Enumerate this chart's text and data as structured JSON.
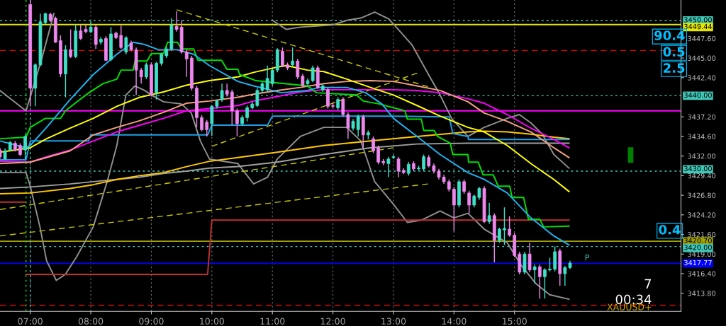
{
  "chart_data": {
    "type": "candlestick",
    "x": [
      6.5,
      6.583,
      6.667,
      6.75,
      6.833,
      6.917,
      7,
      7.083,
      7.167,
      7.25,
      7.333,
      7.417,
      7.5,
      7.583,
      7.667,
      7.75,
      7.833,
      7.917,
      8,
      8.083,
      8.167,
      8.25,
      8.333,
      8.417,
      8.5,
      8.583,
      8.667,
      8.75,
      8.833,
      8.917,
      9,
      9.083,
      9.167,
      9.25,
      9.333,
      9.417,
      9.5,
      9.583,
      9.667,
      9.75,
      9.833,
      9.917,
      10,
      10.083,
      10.167,
      10.25,
      10.333,
      10.417,
      10.5,
      10.583,
      10.667,
      10.75,
      10.833,
      10.917,
      11,
      11.083,
      11.167,
      11.25,
      11.333,
      11.417,
      11.5,
      11.583,
      11.667,
      11.75,
      11.833,
      11.917,
      12,
      12.083,
      12.167,
      12.25,
      12.333,
      12.417,
      12.5,
      12.583,
      12.667,
      12.75,
      12.833,
      12.917,
      13,
      13.083,
      13.167,
      13.25,
      13.333,
      13.417,
      13.5,
      13.583,
      13.667,
      13.75,
      13.833,
      13.917,
      14,
      14.083,
      14.167,
      14.25,
      14.333,
      14.417,
      14.5,
      14.583,
      14.667,
      14.75,
      14.833,
      14.917,
      15,
      15.083,
      15.167,
      15.25,
      15.333,
      15.417,
      15.5,
      15.583,
      15.667,
      15.75,
      15.833,
      15.917
    ],
    "ohlc": [
      [
        3432.8,
        3433.1,
        3431.6,
        3431.9
      ],
      [
        3431.6,
        3433.0,
        3431.5,
        3432.7
      ],
      [
        3432.8,
        3434.0,
        3432.7,
        3433.8
      ],
      [
        3433.7,
        3434.0,
        3432.6,
        3432.8
      ],
      [
        3433.4,
        3433.7,
        3432.0,
        3432.2
      ],
      [
        3432.8,
        3434.9,
        3431.6,
        3434.6
      ],
      [
        3452.1,
        3452.7,
        3438.6,
        3441.0
      ],
      [
        3441.0,
        3444.3,
        3438.6,
        3444.1
      ],
      [
        3444.1,
        3450.9,
        3443.9,
        3449.8
      ],
      [
        3449.7,
        3451.0,
        3449.5,
        3450.9
      ],
      [
        3450.8,
        3451.0,
        3449.8,
        3450.0
      ],
      [
        3450.3,
        3450.5,
        3447.0,
        3447.1
      ],
      [
        3447.3,
        3448.0,
        3442.5,
        3442.9
      ],
      [
        3442.9,
        3446.7,
        3439.8,
        3446.1
      ],
      [
        3446.1,
        3448.8,
        3445.0,
        3445.2
      ],
      [
        3445.2,
        3449.4,
        3445.0,
        3448.6
      ],
      [
        3448.6,
        3449.4,
        3447.4,
        3447.6
      ],
      [
        3448.8,
        3449.4,
        3448.3,
        3448.5
      ],
      [
        3448.5,
        3449.9,
        3448.3,
        3449.1
      ],
      [
        3449.1,
        3449.4,
        3446.2,
        3446.8
      ],
      [
        3447.1,
        3447.8,
        3446.8,
        3447.5
      ],
      [
        3447.6,
        3447.9,
        3444.6,
        3444.7
      ],
      [
        3444.8,
        3449.1,
        3444.6,
        3448.2
      ],
      [
        3448.3,
        3448.5,
        3447.5,
        3447.7
      ],
      [
        3448.0,
        3449.3,
        3446.2,
        3446.4
      ],
      [
        3445.8,
        3447.9,
        3445.5,
        3447.7
      ],
      [
        3447.0,
        3447.3,
        3445.9,
        3446.1
      ],
      [
        3446.1,
        3446.4,
        3440.1,
        3443.4
      ],
      [
        3443.4,
        3443.7,
        3441.6,
        3442.5
      ],
      [
        3442.5,
        3444.4,
        3442.2,
        3444.1
      ],
      [
        3444.1,
        3444.4,
        3439.9,
        3440.1
      ],
      [
        3440.4,
        3444.5,
        3439.5,
        3444.3
      ],
      [
        3444.3,
        3445.7,
        3444.0,
        3445.5
      ],
      [
        3445.3,
        3446.5,
        3445.0,
        3446.2
      ],
      [
        3446.2,
        3450.3,
        3446.0,
        3449.4
      ],
      [
        3449.2,
        3451.2,
        3448.5,
        3448.8
      ],
      [
        3449.1,
        3450.0,
        3445.6,
        3445.8
      ],
      [
        3445.8,
        3446.1,
        3442.5,
        3444.9
      ],
      [
        3445.0,
        3445.3,
        3440.7,
        3441.0
      ],
      [
        3441.0,
        3441.3,
        3435.8,
        3437.1
      ],
      [
        3437.1,
        3437.4,
        3435.3,
        3435.5
      ],
      [
        3436.5,
        3436.8,
        3434.6,
        3435.5
      ],
      [
        3436.3,
        3438.8,
        3434.7,
        3438.6
      ],
      [
        3438.6,
        3439.5,
        3438.3,
        3439.3
      ],
      [
        3439.5,
        3441.6,
        3439.2,
        3440.7
      ],
      [
        3440.7,
        3441.6,
        3439.9,
        3440.2
      ],
      [
        3440.5,
        3440.8,
        3436.1,
        3438.0
      ],
      [
        3438.0,
        3438.3,
        3434.6,
        3436.3
      ],
      [
        3436.3,
        3437.4,
        3436.0,
        3437.1
      ],
      [
        3437.1,
        3438.7,
        3436.6,
        3438.4
      ],
      [
        3438.4,
        3439.2,
        3438.2,
        3438.9
      ],
      [
        3438.7,
        3441.0,
        3438.5,
        3440.7
      ],
      [
        3440.7,
        3441.8,
        3440.4,
        3441.6
      ],
      [
        3440.8,
        3444.0,
        3440.5,
        3442.3
      ],
      [
        3441.6,
        3443.6,
        3441.3,
        3443.4
      ],
      [
        3443.4,
        3446.3,
        3443.1,
        3446.1
      ],
      [
        3445.9,
        3446.4,
        3443.8,
        3444.0
      ],
      [
        3444.1,
        3444.4,
        3443.4,
        3443.7
      ],
      [
        3444.1,
        3446.4,
        3443.9,
        3444.6
      ],
      [
        3444.6,
        3444.9,
        3442.2,
        3442.5
      ],
      [
        3442.6,
        3442.9,
        3441.2,
        3441.4
      ],
      [
        3441.6,
        3442.3,
        3441.3,
        3442.0
      ],
      [
        3442.0,
        3444.0,
        3441.8,
        3443.7
      ],
      [
        3443.7,
        3444.0,
        3440.9,
        3441.1
      ],
      [
        3440.8,
        3441.6,
        3440.5,
        3441.3
      ],
      [
        3440.8,
        3441.1,
        3438.3,
        3438.6
      ],
      [
        3438.7,
        3439.0,
        3438.3,
        3438.6
      ],
      [
        3438.4,
        3439.8,
        3438.1,
        3439.5
      ],
      [
        3439.5,
        3439.8,
        3437.2,
        3437.5
      ],
      [
        3437.5,
        3437.8,
        3434.3,
        3435.7
      ],
      [
        3435.7,
        3436.9,
        3435.4,
        3436.6
      ],
      [
        3435.5,
        3437.5,
        3434.6,
        3437.2
      ],
      [
        3437.2,
        3437.5,
        3433.1,
        3434.8
      ],
      [
        3434.8,
        3435.4,
        3434.2,
        3435.1
      ],
      [
        3434.3,
        3434.6,
        3432.4,
        3432.7
      ],
      [
        3433.1,
        3433.4,
        3430.9,
        3431.2
      ],
      [
        3431.3,
        3431.6,
        3430.8,
        3431.1
      ],
      [
        3431.0,
        3431.9,
        3429.2,
        3431.6
      ],
      [
        3431.8,
        3432.2,
        3431.6,
        3431.9
      ],
      [
        3431.6,
        3431.9,
        3429.2,
        3430.0
      ],
      [
        3430.1,
        3430.4,
        3429.6,
        3429.8
      ],
      [
        3429.7,
        3431.2,
        3429.4,
        3430.9
      ],
      [
        3431.0,
        3431.3,
        3430.0,
        3430.3
      ],
      [
        3430.3,
        3430.7,
        3430.1,
        3430.4
      ],
      [
        3430.3,
        3432.2,
        3430.0,
        3431.9
      ],
      [
        3431.8,
        3432.1,
        3430.5,
        3430.7
      ],
      [
        3430.7,
        3431.0,
        3429.7,
        3430.0
      ],
      [
        3430.0,
        3430.3,
        3428.9,
        3429.2
      ],
      [
        3429.2,
        3429.5,
        3428.3,
        3428.6
      ],
      [
        3428.6,
        3428.9,
        3427.3,
        3427.6
      ],
      [
        3427.6,
        3427.9,
        3422.0,
        3425.5
      ],
      [
        3425.5,
        3428.9,
        3425.2,
        3428.6
      ],
      [
        3428.6,
        3428.9,
        3427.0,
        3427.3
      ],
      [
        3427.1,
        3427.4,
        3424.4,
        3425.5
      ],
      [
        3425.5,
        3426.9,
        3425.2,
        3426.7
      ],
      [
        3426.5,
        3427.9,
        3426.2,
        3427.7
      ],
      [
        3427.7,
        3428.0,
        3423.1,
        3423.3
      ],
      [
        3423.3,
        3425.8,
        3423.0,
        3424.1
      ],
      [
        3424.1,
        3424.4,
        3417.9,
        3420.8
      ],
      [
        3420.8,
        3422.5,
        3420.5,
        3422.3
      ],
      [
        3422.2,
        3425.2,
        3420.2,
        3422.4
      ],
      [
        3422.3,
        3424.0,
        3421.3,
        3421.5
      ],
      [
        3421.5,
        3421.8,
        3418.6,
        3418.8
      ],
      [
        3419.0,
        3419.3,
        3416.3,
        3416.6
      ],
      [
        3416.6,
        3419.3,
        3416.3,
        3419.0
      ],
      [
        3419.0,
        3420.5,
        3416.6,
        3416.9
      ],
      [
        3416.9,
        3417.6,
        3415.1,
        3417.3
      ],
      [
        3417.3,
        3417.6,
        3413.1,
        3416.0
      ],
      [
        3416.0,
        3417.1,
        3413.1,
        3416.9
      ],
      [
        3416.9,
        3418.5,
        3416.7,
        3417.0
      ],
      [
        3417.0,
        3420.0,
        3416.7,
        3419.3
      ],
      [
        3419.4,
        3419.7,
        3414.8,
        3416.4
      ],
      [
        3416.4,
        3417.4,
        3414.8,
        3417.2
      ],
      [
        3417.2,
        3418.1,
        3417.0,
        3417.8
      ]
    ],
    "colors": [
      "#ee88ee",
      "#40e0c8",
      "#40e0c8",
      "#ee88ee",
      "#ee88ee",
      "#40e0c8",
      "#ee88ee",
      "#40e0c8",
      "#40e0c8",
      "#40e0c8",
      "#ee88ee",
      "#ee88ee",
      "#ee88ee",
      "#40e0c8",
      "#ee88ee",
      "#40e0c8",
      "#ee88ee",
      "#ee88ee",
      "#40e0c8",
      "#ee88ee",
      "#40e0c8",
      "#ee88ee",
      "#40e0c8",
      "#ee88ee",
      "#ee88ee",
      "#40e0c8",
      "#ee88ee",
      "#ee88ee",
      "#ee88ee",
      "#40e0c8",
      "#ee88ee",
      "#40e0c8",
      "#40e0c8",
      "#40e0c8",
      "#40e0c8",
      "#ee88ee",
      "#ee88ee",
      "#ee88ee",
      "#ee88ee",
      "#ee88ee",
      "#ee88ee",
      "#ee88ee",
      "#40e0c8",
      "#40e0c8",
      "#40e0c8",
      "#ee88ee",
      "#ee88ee",
      "#ee88ee",
      "#40e0c8",
      "#40e0c8",
      "#40e0c8",
      "#40e0c8",
      "#40e0c8",
      "#40e0c8",
      "#40e0c8",
      "#40e0c8",
      "#ee88ee",
      "#ee88ee",
      "#40e0c8",
      "#ee88ee",
      "#ee88ee",
      "#40e0c8",
      "#40e0c8",
      "#ee88ee",
      "#40e0c8",
      "#ee88ee",
      "#ee88ee",
      "#40e0c8",
      "#ee88ee",
      "#ee88ee",
      "#40e0c8",
      "#40e0c8",
      "#ee88ee",
      "#40e0c8",
      "#ee88ee",
      "#ee88ee",
      "#ee88ee",
      "#40e0c8",
      "#40e0c8",
      "#ee88ee",
      "#ee88ee",
      "#40e0c8",
      "#ee88ee",
      "#40e0c8",
      "#40e0c8",
      "#ee88ee",
      "#ee88ee",
      "#ee88ee",
      "#ee88ee",
      "#ee88ee",
      "#ee88ee",
      "#40e0c8",
      "#ee88ee",
      "#ee88ee",
      "#40e0c8",
      "#40e0c8",
      "#ee88ee",
      "#40e0c8",
      "#ee88ee",
      "#40e0c8",
      "#40e0c8",
      "#ee88ee",
      "#ee88ee",
      "#ee88ee",
      "#40e0c8",
      "#ee88ee",
      "#40e0c8",
      "#ee88ee",
      "#40e0c8",
      "#40e0c8",
      "#40e0c8",
      "#ee88ee",
      "#40e0c8",
      "#40e0c8"
    ],
    "series": [
      {
        "type": "line",
        "color": "#909090",
        "x": [
          6.5,
          6.93,
          7.2,
          7.39,
          7.5,
          10.85,
          11.0,
          11.23,
          11.46,
          12.0,
          12.23,
          12.46,
          12.69,
          12.92,
          13.08,
          13.31,
          13.58,
          13.77,
          13.96,
          14.23,
          14.5,
          14.88,
          15.08,
          15.27,
          15.46,
          15.65,
          15.9
        ],
        "values": [
          3440.7,
          3438.0,
          3445.2,
          3450.9,
          null,
          null,
          3450.0,
          3448.8,
          3449.1,
          3449.4,
          3450.0,
          3450.3,
          3451.1,
          3450.2,
          3448.8,
          3446.7,
          3442.8,
          3440.1,
          3437.0,
          3434.6,
          3435.8,
          3437.0,
          3437.5,
          3436.4,
          3434.9,
          3432.2,
          3430.4
        ]
      },
      {
        "type": "line",
        "color": "#909090",
        "x": [
          6.5,
          6.93,
          7.0,
          7.16,
          7.27,
          7.43,
          7.58,
          7.77,
          8.04,
          8.27,
          8.43,
          8.58,
          8.73,
          8.89,
          9.0,
          9.2,
          9.5,
          9.66,
          9.81,
          9.96,
          10.43,
          10.69,
          10.92,
          11.08,
          11.46,
          11.85,
          12.23,
          12.46,
          12.69,
          13.0,
          13.23,
          13.46,
          13.77,
          14.0,
          14.23,
          14.5,
          14.88,
          15.11,
          15.35,
          15.58,
          15.9
        ],
        "values": [
          3429.8,
          3429.8,
          3428.0,
          3422.6,
          3418.1,
          3415.5,
          3416.3,
          3418.7,
          3422.6,
          3428.6,
          3433.4,
          3440.1,
          3441.3,
          3440.7,
          3440.1,
          3439.2,
          3438.9,
          3437.7,
          3434.0,
          3431.6,
          3431.0,
          3428.3,
          3429.2,
          3431.6,
          3434.6,
          3435.8,
          3435.8,
          3434.0,
          3428.6,
          3425.6,
          3423.2,
          3423.5,
          3424.7,
          3423.8,
          3424.4,
          3422.3,
          3420.5,
          3417.5,
          3415.1,
          3413.6,
          3413.0
        ]
      },
      {
        "type": "line",
        "color": "#c8c800",
        "line_style": "dashed",
        "x": [
          9.42,
          13.57
        ],
        "values": [
          3451.4,
          3441.2
        ]
      },
      {
        "type": "line",
        "color": "#c8c800",
        "line_style": "dashed",
        "x": [
          6.5,
          13.57
        ],
        "values": [
          3421.4,
          3428.3
        ]
      },
      {
        "type": "line",
        "color": "#c8c800",
        "line_style": "dashed",
        "x": [
          6.5,
          13.0
        ],
        "values": [
          3424.9,
          3433.1
        ]
      },
      {
        "type": "line",
        "color": "#c8c800",
        "line_style": "dashed",
        "x": [
          10.0,
          13.39
        ],
        "values": [
          3433.3,
          3443.0
        ]
      },
      {
        "type": "line",
        "color": "#c03030",
        "x": [
          6.5,
          6.91,
          6.92,
          6.93,
          9.93,
          10.0,
          15.9
        ],
        "values": [
          3425.9,
          3425.9,
          null,
          3416.3,
          3416.3,
          3423.5,
          3423.5
        ]
      },
      {
        "type": "line",
        "color": "#a0a0a0",
        "x": [
          6.5,
          7.0,
          7.66,
          8.04,
          8.43,
          8.81,
          9.2,
          9.58,
          9.96,
          10.43,
          11.08,
          11.85,
          12.62,
          13.39,
          14.23,
          15.9
        ],
        "values": [
          3427.7,
          3427.9,
          3428.3,
          3428.6,
          3428.9,
          3429.2,
          3429.7,
          3430.0,
          3430.4,
          3430.6,
          3431.2,
          3432.2,
          3433.1,
          3433.6,
          3433.7,
          3433.7
        ]
      },
      {
        "type": "line",
        "color": "#ffc800",
        "x": [
          6.5,
          7.0,
          7.66,
          8.04,
          8.43,
          8.81,
          9.2,
          9.58,
          9.96,
          10.43,
          11.08,
          11.85,
          12.62,
          13.39,
          14.23,
          14.5,
          14.88,
          15.27,
          15.65,
          15.9
        ],
        "values": [
          3427.0,
          3427.1,
          3427.7,
          3428.2,
          3428.9,
          3429.4,
          3429.8,
          3430.6,
          3431.3,
          3431.8,
          3432.5,
          3433.4,
          3434.0,
          3434.6,
          3435.2,
          3435.3,
          3435.2,
          3434.9,
          3434.5,
          3434.3
        ]
      },
      {
        "type": "line",
        "color": "#1ea0e6",
        "x": [
          6.5,
          6.93,
          7.0,
          7.96,
          8.0,
          9.93,
          10.0,
          10.92,
          11.0,
          12.96,
          13.92,
          13.98,
          14.23,
          14.24,
          15.9
        ],
        "values": [
          3431.5,
          3431.5,
          3434.0,
          3434.0,
          3434.8,
          3434.8,
          3436.1,
          3436.1,
          3437.3,
          3437.3,
          3437.2,
          3435.0,
          3434.6,
          3434.2,
          3434.2
        ]
      },
      {
        "type": "line",
        "color": "#ff00ff",
        "x": [
          6.5,
          7.0,
          7.27,
          7.66,
          8.04,
          8.43,
          8.81,
          9.2,
          9.58,
          9.96,
          10.43,
          10.69,
          11.08,
          11.46,
          11.85,
          12.23,
          12.62,
          13.0,
          13.39,
          13.77,
          14.23,
          14.5,
          14.88,
          15.27,
          15.65,
          15.9
        ],
        "values": [
          3431.3,
          3431.2,
          3431.9,
          3432.8,
          3434.0,
          3435.2,
          3436.1,
          3437.0,
          3438.0,
          3438.3,
          3438.7,
          3439.3,
          3439.9,
          3440.5,
          3440.8,
          3440.8,
          3440.8,
          3440.8,
          3440.7,
          3440.4,
          3439.6,
          3439.0,
          3437.5,
          3435.7,
          3434.2,
          3433.1
        ]
      },
      {
        "type": "line",
        "color": "#f4a080",
        "x": [
          6.5,
          7.0,
          7.27,
          7.66,
          8.04,
          8.43,
          8.81,
          9.2,
          9.58,
          9.96,
          10.43,
          10.69,
          11.08,
          11.46,
          11.85,
          12.23,
          12.62,
          13.0,
          13.39,
          13.77,
          14.23,
          14.5,
          14.88,
          15.27,
          15.65,
          15.9
        ],
        "values": [
          3431.0,
          3431.2,
          3431.8,
          3432.7,
          3434.8,
          3435.8,
          3436.7,
          3437.8,
          3439.0,
          3439.3,
          3439.8,
          3440.2,
          3440.7,
          3441.1,
          3441.6,
          3441.9,
          3442.0,
          3441.9,
          3441.3,
          3440.7,
          3439.2,
          3437.7,
          3436.6,
          3435.2,
          3433.1,
          3431.8
        ]
      },
      {
        "type": "line",
        "color": "#ffff00",
        "x": [
          6.5,
          7.0,
          7.27,
          7.66,
          8.04,
          8.43,
          8.81,
          9.2,
          9.58,
          9.96,
          10.43,
          10.69,
          11.08,
          11.23,
          11.58,
          11.85,
          12.23,
          12.62,
          13.0,
          13.39,
          13.77,
          14.23,
          14.5,
          14.88,
          15.27,
          15.65,
          15.9
        ],
        "values": [
          3432.5,
          3433.1,
          3434.3,
          3435.7,
          3437.0,
          3438.6,
          3439.8,
          3440.5,
          3441.4,
          3442.0,
          3442.5,
          3443.1,
          3443.8,
          3444.0,
          3443.4,
          3443.2,
          3442.2,
          3441.1,
          3440.1,
          3438.7,
          3437.3,
          3435.8,
          3435.2,
          3433.4,
          3431.0,
          3428.9,
          3427.3
        ]
      },
      {
        "type": "line",
        "color": "#00e000",
        "x": [
          6.5,
          6.93,
          7.0,
          7.25,
          7.5,
          7.58,
          7.77,
          7.97,
          8.2,
          8.43,
          8.5,
          8.7,
          8.73,
          8.93,
          9.0,
          9.2,
          9.27,
          9.43,
          9.5,
          9.7,
          9.77,
          10.16,
          10.25,
          10.43,
          10.46,
          10.73,
          11.08,
          11.58,
          11.73,
          12.39,
          12.5,
          12.77,
          13.19,
          13.23,
          13.46,
          13.5,
          13.67,
          13.73,
          13.94,
          13.98,
          14.23,
          14.24,
          14.4,
          14.48,
          14.65,
          14.73,
          14.92,
          14.96,
          15.15,
          15.23,
          15.42,
          15.48,
          15.9
        ],
        "values": [
          3434.3,
          3434.5,
          3435.8,
          3437.0,
          3437.0,
          3438.0,
          3439.2,
          3440.4,
          3441.6,
          3442.2,
          3443.4,
          3443.4,
          3444.6,
          3444.6,
          3445.6,
          3445.6,
          3447.1,
          3447.1,
          3446.2,
          3446.2,
          3444.7,
          3444.7,
          3443.5,
          3443.5,
          3442.8,
          3442.0,
          3441.7,
          3441.3,
          3440.4,
          3440.1,
          3439.3,
          3438.9,
          3438.0,
          3436.9,
          3436.9,
          3435.4,
          3435.4,
          3434.6,
          3433.7,
          3432.2,
          3432.2,
          3431.2,
          3431.2,
          3429.5,
          3429.5,
          3428.0,
          3428.0,
          3426.5,
          3426.5,
          3423.6,
          3423.6,
          3422.6,
          3422.7
        ]
      },
      {
        "type": "line",
        "color": "#1eb4f0",
        "x": [
          6.5,
          6.93,
          7.0,
          7.27,
          7.66,
          8.04,
          8.43,
          8.7,
          8.89,
          9.12,
          9.43,
          9.7,
          9.96,
          10.43,
          10.69,
          11.15,
          11.58,
          11.77,
          12.23,
          12.54,
          12.81,
          13.0,
          13.39,
          13.77,
          14.23,
          14.5,
          14.88,
          15.27,
          15.65,
          15.9
        ],
        "values": [
          3434.0,
          3433.1,
          3433.4,
          3435.8,
          3439.5,
          3442.8,
          3445.5,
          3447.1,
          3446.8,
          3446.1,
          3446.1,
          3445.5,
          3444.0,
          3441.9,
          3441.3,
          3440.4,
          3440.7,
          3441.1,
          3441.1,
          3440.4,
          3438.9,
          3437.0,
          3434.6,
          3432.2,
          3429.8,
          3428.9,
          3427.1,
          3423.8,
          3421.4,
          3420.2
        ]
      }
    ],
    "xlim": [
      6.5,
      17.75
    ],
    "xticks": [
      {
        "value": 7,
        "label": "07:00"
      },
      {
        "value": 8,
        "label": "08:00"
      },
      {
        "value": 9,
        "label": "09:00"
      },
      {
        "value": 10,
        "label": "10:00"
      },
      {
        "value": 11,
        "label": "11:00"
      },
      {
        "value": 12,
        "label": "12:00"
      },
      {
        "value": 13,
        "label": "13:00"
      },
      {
        "value": 14,
        "label": "14:00"
      },
      {
        "value": 15,
        "label": "15:00"
      }
    ],
    "ylim": [
      3411.4,
      3452.7
    ],
    "yticks": [
      {
        "value": 3413.8,
        "label": "3413.80"
      },
      {
        "value": 3416.4,
        "label": "3416.40"
      },
      {
        "value": 3419.0,
        "label": "3419.00"
      },
      {
        "value": 3421.6,
        "label": "3421.60"
      },
      {
        "value": 3424.2,
        "label": "3424.20"
      },
      {
        "value": 3426.8,
        "label": "3426.80"
      },
      {
        "value": 3429.4,
        "label": "3429.40"
      },
      {
        "value": 3432.0,
        "label": "3432.00"
      },
      {
        "value": 3434.6,
        "label": "3434.60"
      },
      {
        "value": 3437.2,
        "label": "3437.20"
      },
      {
        "value": 3442.4,
        "label": "3442.40"
      },
      {
        "value": 3445.0,
        "label": "3445.00"
      },
      {
        "value": 3447.6,
        "label": "3447.60"
      }
    ],
    "grid": "x",
    "ref_lines": [
      {
        "axis": "y",
        "value": 3450.0,
        "label": "3450.00",
        "color": "#40c8b8",
        "line_style": "dotted"
      },
      {
        "axis": "y",
        "value": 3449.44,
        "label": "3449.44",
        "color": "#e6e600",
        "line_style": "solid"
      },
      {
        "axis": "y",
        "value": 3446.0,
        "label": null,
        "color": "#e00000",
        "line_style": "dashed"
      },
      {
        "axis": "y",
        "value": 3440.0,
        "label": "3440.00",
        "color": "#40c8b8",
        "line_style": "dotted"
      },
      {
        "axis": "y",
        "value": 3438.0,
        "label": null,
        "color": "#ff00ff",
        "line_style": "solid"
      },
      {
        "axis": "y",
        "value": 3430.0,
        "label": "3430.00",
        "color": "#40c8b8",
        "line_style": "dotted"
      },
      {
        "axis": "y",
        "value": 3420.7,
        "label": "3420.70",
        "color": "#a0a000",
        "line_style": "solid"
      },
      {
        "axis": "y",
        "value": 3420.0,
        "label": "3420.00",
        "color": "#40c8b8",
        "line_style": "dotted"
      },
      {
        "axis": "y",
        "value": 3417.77,
        "label": "3417.77",
        "color": "#0000ff",
        "line_style": "solid"
      },
      {
        "axis": "y",
        "value": 3412.2,
        "label": null,
        "color": "#e00000",
        "line_style": "dashed"
      },
      {
        "axis": "x",
        "value": 6.93,
        "label": null,
        "color": "#00e000",
        "line_style": "dotted"
      },
      {
        "axis": "x",
        "value": 7.0,
        "label": null,
        "color": "#40c8b8",
        "line_style": "dotted"
      }
    ],
    "annotations": [
      "90.4",
      "0.5",
      "2.5",
      "0.4",
      "7",
      "00:34",
      "XAUUSD+",
      "P"
    ]
  }
}
